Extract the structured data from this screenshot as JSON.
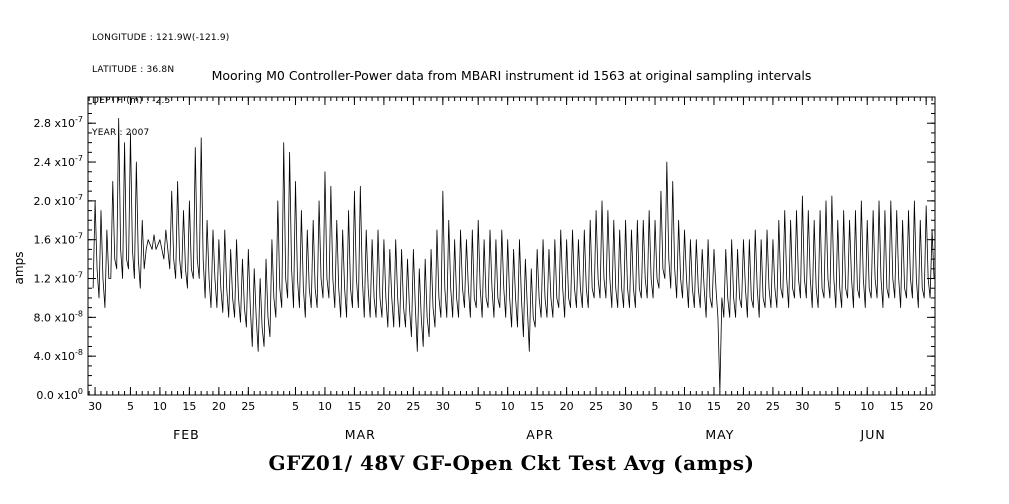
{
  "page": {
    "background": "#ffffff",
    "line_color": "#000000"
  },
  "meta": {
    "longitude": "LONGITUDE : 121.9W(-121.9)",
    "latitude": "LATITUDE : 36.8N",
    "depth": "DEPTH (m) : -2.5",
    "year": "YEAR : 2007"
  },
  "title": "Mooring M0 Controller-Power data from MBARI instrument id 1563 at original sampling intervals",
  "caption": "GFZ01/ 48V GF-Open Ckt Test Avg (amps)",
  "y_axis_title": "amps",
  "chart_data": {
    "type": "line",
    "title": "Mooring M0 Controller-Power data from MBARI instrument id 1563 at original sampling intervals",
    "subtitle": "GFZ01/ 48V GF-Open Ckt Test Avg (amps)",
    "ylabel": "amps",
    "x_unit": "days since 2007-01-30",
    "value_scale_amps": 1e-08,
    "x_start_day": -0.33,
    "points_per_day": 3,
    "grid": "off",
    "legend": "none",
    "x_axis": {
      "range_days": [
        -1.2,
        142.5
      ],
      "minor_tick_every_days": 1,
      "major_ticks": [
        {
          "day": 0,
          "label": "30"
        },
        {
          "day": 6,
          "label": "5"
        },
        {
          "day": 11,
          "label": "10"
        },
        {
          "day": 16,
          "label": "15"
        },
        {
          "day": 21,
          "label": "20"
        },
        {
          "day": 26,
          "label": "25"
        },
        {
          "day": 34,
          "label": "5"
        },
        {
          "day": 39,
          "label": "10"
        },
        {
          "day": 44,
          "label": "15"
        },
        {
          "day": 49,
          "label": "20"
        },
        {
          "day": 54,
          "label": "25"
        },
        {
          "day": 59,
          "label": "30"
        },
        {
          "day": 65,
          "label": "5"
        },
        {
          "day": 70,
          "label": "10"
        },
        {
          "day": 75,
          "label": "15"
        },
        {
          "day": 80,
          "label": "20"
        },
        {
          "day": 85,
          "label": "25"
        },
        {
          "day": 90,
          "label": "30"
        },
        {
          "day": 95,
          "label": "5"
        },
        {
          "day": 100,
          "label": "10"
        },
        {
          "day": 105,
          "label": "15"
        },
        {
          "day": 110,
          "label": "20"
        },
        {
          "day": 115,
          "label": "25"
        },
        {
          "day": 120,
          "label": "30"
        },
        {
          "day": 126,
          "label": "5"
        },
        {
          "day": 131,
          "label": "10"
        },
        {
          "day": 136,
          "label": "15"
        },
        {
          "day": 141,
          "label": "20"
        }
      ],
      "month_labels": [
        {
          "label": "FEB",
          "day": 15.5
        },
        {
          "label": "MAR",
          "day": 45
        },
        {
          "label": "APR",
          "day": 75.5
        },
        {
          "label": "MAY",
          "day": 106
        },
        {
          "label": "JUN",
          "day": 132
        }
      ]
    },
    "y_axis": {
      "range_e8": [
        0,
        30.7
      ],
      "minor_tick_every_e8": 1,
      "major_ticks": [
        {
          "value_e8": 0,
          "mantissa": "0.0",
          "exponent": "0"
        },
        {
          "value_e8": 4,
          "mantissa": "4.0",
          "exponent": "-8"
        },
        {
          "value_e8": 8,
          "mantissa": "8.0",
          "exponent": "-8"
        },
        {
          "value_e8": 12,
          "mantissa": "1.2",
          "exponent": "-7"
        },
        {
          "value_e8": 16,
          "mantissa": "1.6",
          "exponent": "-7"
        },
        {
          "value_e8": 20,
          "mantissa": "2.0",
          "exponent": "-7"
        },
        {
          "value_e8": 24,
          "mantissa": "2.4",
          "exponent": "-7"
        },
        {
          "value_e8": 28,
          "mantissa": "2.8",
          "exponent": "-7"
        }
      ]
    },
    "values_e8": [
      11,
      20,
      13,
      10,
      19,
      12,
      9,
      17,
      12,
      12,
      22,
      14,
      13,
      28.5,
      15,
      12,
      26,
      14,
      13,
      27,
      15,
      12,
      24,
      14,
      11,
      18,
      13,
      15,
      16,
      15.5,
      15,
      16.5,
      15,
      15.5,
      16,
      15,
      14,
      17,
      15,
      13,
      21,
      14,
      12,
      22,
      14,
      12,
      19,
      13,
      11,
      20,
      13,
      12,
      25.5,
      14,
      12,
      26.5,
      14,
      10,
      18,
      12,
      9,
      17,
      12,
      9,
      16,
      11,
      8.5,
      17,
      11,
      8,
      15,
      10,
      8,
      16,
      10,
      7.5,
      14,
      9,
      7,
      15,
      9,
      5,
      13,
      8,
      4.5,
      12,
      7,
      5,
      14,
      8,
      6,
      16,
      10,
      8,
      20,
      11,
      9,
      26,
      12,
      10,
      25,
      13,
      9,
      22,
      12,
      9,
      19,
      11,
      8,
      17,
      11,
      9,
      18,
      11,
      9,
      20,
      12,
      10,
      23,
      12,
      10,
      21.5,
      12,
      9,
      18,
      11,
      8,
      17,
      11,
      8,
      19,
      11,
      9,
      21,
      12,
      9,
      21.5,
      12,
      8,
      17,
      11,
      8,
      16,
      10,
      8,
      17,
      10,
      8,
      16,
      10,
      7,
      15,
      10,
      7,
      16,
      10,
      7,
      15,
      9,
      7,
      14,
      9,
      6,
      15,
      9,
      4.5,
      13,
      8,
      5,
      14,
      8,
      6,
      15,
      9,
      7,
      17,
      10,
      8,
      21,
      11,
      8,
      18,
      11,
      8,
      16,
      10,
      8,
      17,
      11,
      9,
      16,
      11,
      8,
      17,
      10,
      9,
      18,
      11,
      8,
      16,
      10,
      9,
      17,
      11,
      8,
      16,
      10,
      9,
      17,
      11,
      8,
      16,
      10,
      7,
      15,
      10,
      7,
      16,
      10,
      6,
      14,
      9,
      4.5,
      13,
      8,
      7,
      15,
      10,
      8,
      16,
      10,
      8,
      15,
      10,
      8,
      16,
      10,
      9,
      17,
      11,
      8,
      16,
      10,
      9,
      17,
      11,
      9,
      16,
      11,
      9,
      17,
      11,
      9,
      18,
      11,
      10,
      19,
      12,
      10,
      20,
      12,
      10,
      19,
      12,
      9,
      18,
      11,
      9,
      17,
      11,
      9,
      18,
      11,
      9,
      17,
      11,
      9,
      18,
      11,
      10,
      18,
      12,
      10,
      19,
      12,
      10,
      18,
      12,
      11,
      21,
      13,
      12,
      24,
      14,
      11,
      22,
      13,
      10,
      18,
      12,
      10,
      17,
      12,
      9,
      16,
      11,
      9,
      16,
      11,
      9,
      15,
      11,
      8,
      16,
      10,
      9,
      15,
      11,
      8,
      0.3,
      10,
      8,
      15,
      10,
      8,
      16,
      10,
      8,
      15,
      10,
      9,
      16,
      11,
      8,
      16,
      10,
      9,
      17,
      11,
      8,
      16,
      10,
      9,
      17,
      11,
      9,
      16,
      11,
      9,
      18,
      11,
      10,
      19,
      12,
      9,
      18,
      11,
      10,
      19,
      12,
      10,
      20.5,
      12,
      10,
      19,
      12,
      9,
      18,
      11,
      9,
      19,
      11,
      10,
      20,
      12,
      10,
      20.5,
      12,
      9,
      18,
      11,
      9,
      19,
      11,
      10,
      18,
      12,
      9,
      19,
      11,
      10,
      20,
      12,
      9,
      18,
      11,
      10,
      19,
      12,
      10,
      20,
      12,
      9,
      19,
      11,
      10,
      20,
      12,
      10,
      19,
      12,
      9,
      18,
      11,
      10,
      19,
      12,
      10,
      20,
      12,
      9,
      18,
      11,
      10,
      19.5,
      12,
      10,
      17,
      12
    ]
  }
}
